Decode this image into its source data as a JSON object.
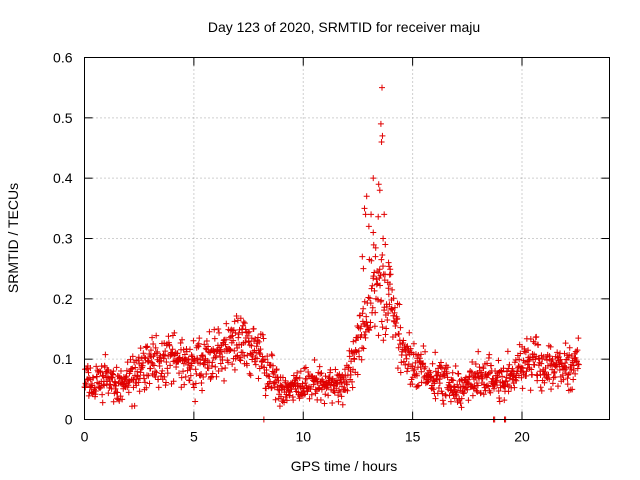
{
  "chart_data": {
    "type": "scatter",
    "title": "Day 123 of 2020, SRMTID for receiver maju",
    "xlabel": "GPS time / hours",
    "ylabel": "SRMTID / TECUs",
    "xlim": [
      0,
      24
    ],
    "ylim": [
      0,
      0.6
    ],
    "x_ticks": [
      0,
      5,
      10,
      15,
      20
    ],
    "x_tick_labels": [
      "0",
      "5",
      "10",
      "15",
      "20"
    ],
    "y_ticks": [
      0,
      0.1,
      0.2,
      0.3,
      0.4,
      0.5,
      0.6
    ],
    "y_tick_labels": [
      "0",
      "0.1",
      "0.2",
      "0.3",
      "0.4",
      "0.5",
      "0.6"
    ],
    "grid": true,
    "marker": "plus",
    "color": "#e00000",
    "series": [
      {
        "name": "SRMTID",
        "profile_x": [
          0.0,
          0.5,
          1.0,
          1.5,
          2.0,
          2.5,
          3.0,
          3.5,
          4.0,
          4.5,
          5.0,
          5.5,
          6.0,
          6.5,
          7.0,
          7.5,
          8.0,
          8.5,
          9.0,
          9.5,
          10.0,
          10.5,
          11.0,
          11.5,
          12.0,
          12.5,
          13.0,
          13.3,
          13.6,
          14.0,
          14.5,
          15.0,
          15.5,
          16.0,
          16.5,
          17.0,
          17.5,
          18.0,
          18.5,
          19.0,
          19.5,
          20.0,
          20.5,
          21.0,
          21.5,
          22.0,
          22.6
        ],
        "profile_y": [
          0.065,
          0.06,
          0.065,
          0.055,
          0.06,
          0.085,
          0.1,
          0.095,
          0.11,
          0.09,
          0.09,
          0.105,
          0.11,
          0.12,
          0.13,
          0.12,
          0.1,
          0.08,
          0.05,
          0.05,
          0.055,
          0.06,
          0.06,
          0.055,
          0.06,
          0.13,
          0.18,
          0.22,
          0.22,
          0.2,
          0.12,
          0.09,
          0.08,
          0.07,
          0.06,
          0.05,
          0.06,
          0.07,
          0.07,
          0.06,
          0.07,
          0.09,
          0.1,
          0.08,
          0.08,
          0.09,
          0.09
        ],
        "spread": [
          0.025,
          0.03,
          0.03,
          0.025,
          0.03,
          0.035,
          0.035,
          0.035,
          0.035,
          0.03,
          0.035,
          0.04,
          0.04,
          0.04,
          0.04,
          0.04,
          0.04,
          0.035,
          0.02,
          0.02,
          0.025,
          0.025,
          0.025,
          0.02,
          0.03,
          0.05,
          0.06,
          0.08,
          0.08,
          0.07,
          0.04,
          0.035,
          0.035,
          0.03,
          0.025,
          0.025,
          0.03,
          0.035,
          0.03,
          0.03,
          0.03,
          0.035,
          0.035,
          0.03,
          0.03,
          0.035,
          0.035
        ],
        "x_start": 0.0,
        "x_end": 22.6,
        "x_step": 0.0167,
        "peak_points": [
          {
            "x": 13.6,
            "y": 0.55
          },
          {
            "x": 13.55,
            "y": 0.49
          },
          {
            "x": 13.62,
            "y": 0.47
          },
          {
            "x": 13.58,
            "y": 0.46
          },
          {
            "x": 13.2,
            "y": 0.4
          },
          {
            "x": 13.45,
            "y": 0.39
          },
          {
            "x": 13.5,
            "y": 0.38
          },
          {
            "x": 12.9,
            "y": 0.37
          },
          {
            "x": 12.8,
            "y": 0.35
          },
          {
            "x": 12.85,
            "y": 0.34
          },
          {
            "x": 13.1,
            "y": 0.34
          },
          {
            "x": 13.7,
            "y": 0.34
          },
          {
            "x": 13.0,
            "y": 0.32
          },
          {
            "x": 13.2,
            "y": 0.31
          },
          {
            "x": 13.65,
            "y": 0.3
          },
          {
            "x": 13.75,
            "y": 0.29
          },
          {
            "x": 12.7,
            "y": 0.27
          },
          {
            "x": 13.3,
            "y": 0.27
          },
          {
            "x": 13.9,
            "y": 0.26
          },
          {
            "x": 12.75,
            "y": 0.25
          },
          {
            "x": 13.95,
            "y": 0.24
          }
        ],
        "zero_points": [
          {
            "x": 8.2,
            "y": 0.0
          },
          {
            "x": 18.7,
            "y": 0.0
          },
          {
            "x": 18.75,
            "y": 0.0
          },
          {
            "x": 19.2,
            "y": 0.0
          },
          {
            "x": 19.25,
            "y": 0.0
          }
        ]
      }
    ]
  }
}
